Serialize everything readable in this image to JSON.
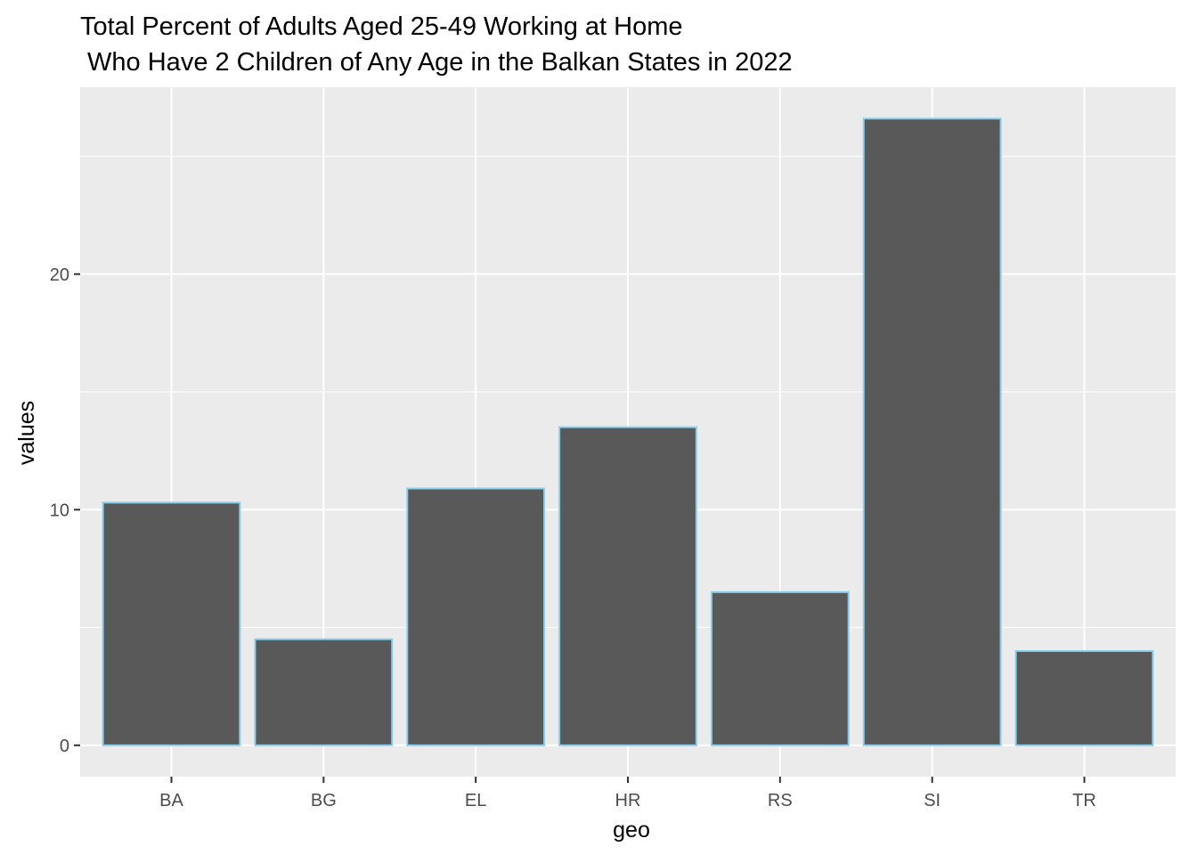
{
  "chart_data": {
    "type": "bar",
    "title_lines": [
      "Total Percent of Adults Aged 25-49 Working at Home",
      " Who Have 2 Children of Any Age in the Balkan States in 2022"
    ],
    "xlabel": "geo",
    "ylabel": "values",
    "categories": [
      "BA",
      "BG",
      "EL",
      "HR",
      "RS",
      "SI",
      "TR"
    ],
    "values": [
      10.3,
      4.5,
      10.9,
      13.5,
      6.5,
      26.6,
      4.0
    ],
    "ylim": [
      -1.33,
      27.93
    ],
    "yticks_major": [
      0,
      10,
      20
    ],
    "yticks_minor": [
      5,
      15,
      25
    ],
    "bar_fill": "#595959",
    "bar_outline": "#87ceeb",
    "panel_background": "#ebebeb",
    "grid_color": "#ffffff",
    "grid": true,
    "legend": "none"
  }
}
